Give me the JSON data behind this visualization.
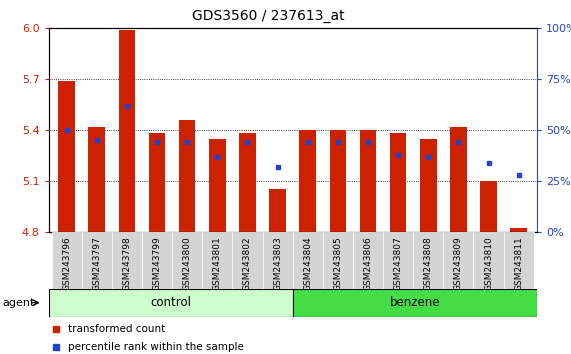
{
  "title": "GDS3560 / 237613_at",
  "samples": [
    "GSM243796",
    "GSM243797",
    "GSM243798",
    "GSM243799",
    "GSM243800",
    "GSM243801",
    "GSM243802",
    "GSM243803",
    "GSM243804",
    "GSM243805",
    "GSM243806",
    "GSM243807",
    "GSM243808",
    "GSM243809",
    "GSM243810",
    "GSM243811"
  ],
  "red_values": [
    5.69,
    5.42,
    5.99,
    5.38,
    5.46,
    5.35,
    5.38,
    5.05,
    5.4,
    5.4,
    5.4,
    5.38,
    5.35,
    5.42,
    5.1,
    4.82
  ],
  "blue_percentile": [
    50,
    45,
    62,
    44,
    44,
    37,
    44,
    32,
    44,
    44,
    44,
    38,
    37,
    44,
    34,
    28
  ],
  "ymin": 4.8,
  "ymax": 6.0,
  "yticks_left": [
    4.8,
    5.1,
    5.4,
    5.7,
    6.0
  ],
  "yticks_right": [
    0,
    25,
    50,
    75,
    100
  ],
  "bar_color": "#cc2200",
  "blue_color": "#2244cc",
  "control_bg": "#ccffcc",
  "benzene_bg": "#44dd44",
  "n_control": 8,
  "n_benzene": 8,
  "control_label": "control",
  "benzene_label": "benzene",
  "agent_label": "agent",
  "legend_red": "transformed count",
  "legend_blue": "percentile rank within the sample",
  "xticklabel_bg": "#d4d4d4",
  "title_fontsize": 10,
  "axis_fontsize": 8,
  "bar_width": 0.55
}
